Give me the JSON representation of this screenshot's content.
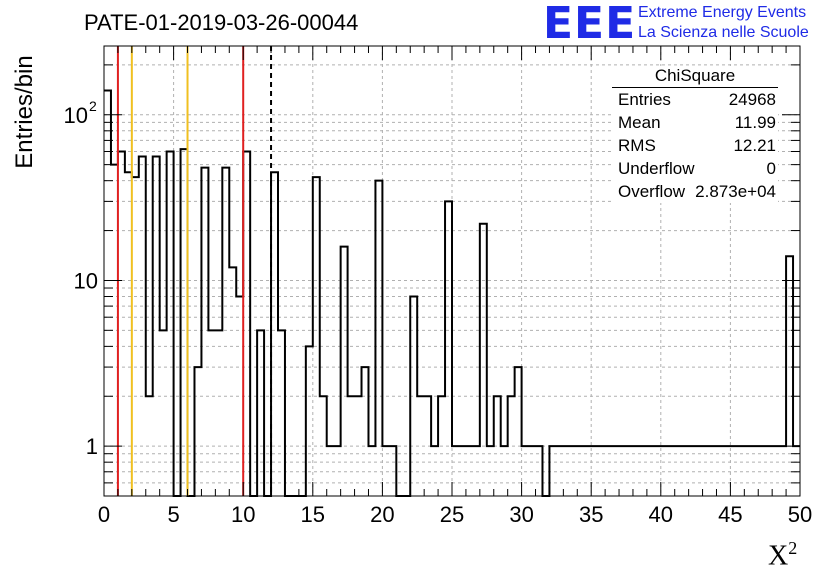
{
  "title": "PATE-01-2019-03-26-00044",
  "logo": {
    "text": "EEE",
    "line1": "Extreme Energy Events",
    "line2": "La Scienza nelle Scuole",
    "color": "#1f2be6"
  },
  "stats": {
    "title": "ChiSquare",
    "rows": [
      {
        "key": "Entries",
        "value": "24968"
      },
      {
        "key": "Mean",
        "value": "11.99"
      },
      {
        "key": "RMS",
        "value": "12.21"
      },
      {
        "key": "Underflow",
        "value": "0"
      },
      {
        "key": "Overflow",
        "value": "2.873e+04"
      }
    ]
  },
  "chart_data": {
    "type": "histogram",
    "xlabel": "X",
    "xlabel_sup": "2",
    "ylabel": "Entries/bin",
    "xlim": [
      0,
      50
    ],
    "ylim": [
      0.5,
      260
    ],
    "log_y": true,
    "grid": true,
    "bin_width": 0.5,
    "x_ticks": [
      0,
      5,
      10,
      15,
      20,
      25,
      30,
      35,
      40,
      45,
      50
    ],
    "x_tick_labels": [
      "0",
      "5",
      "10",
      "15",
      "20",
      "25",
      "30",
      "35",
      "40",
      "45",
      "50"
    ],
    "y_ticks": [
      1,
      10,
      100
    ],
    "y_tick_labels": [
      "1",
      "10",
      "10",
      "2"
    ],
    "y_tick_labels_plain": [
      "1",
      "10"
    ],
    "y_tick_label_100": {
      "base": "10",
      "exp": "2"
    },
    "bin_contents": [
      140,
      50,
      60,
      45,
      42,
      56,
      2,
      56,
      5,
      60,
      0,
      62,
      0,
      3,
      48,
      5,
      5,
      48,
      12,
      8,
      60,
      0,
      5,
      0,
      45,
      5,
      0,
      0,
      0,
      4,
      42,
      2,
      1,
      1,
      16,
      2,
      2,
      3,
      1,
      40,
      1,
      1,
      0,
      0,
      8,
      2,
      2,
      1,
      2,
      30,
      1,
      1,
      1,
      1,
      22,
      1,
      2,
      1,
      2,
      3,
      1,
      1,
      1,
      0,
      1,
      1,
      1,
      1,
      1,
      1,
      1,
      1,
      1,
      1,
      1,
      1,
      1,
      1,
      1,
      1,
      1,
      1,
      1,
      1,
      1,
      1,
      1,
      1,
      1,
      1,
      1,
      1,
      1,
      1,
      1,
      1,
      1,
      1,
      14,
      1
    ],
    "vertical_lines": [
      {
        "x": 1,
        "color": "#e02020",
        "style": "solid"
      },
      {
        "x": 2,
        "color": "#f0c020",
        "style": "solid"
      },
      {
        "x": 6,
        "color": "#f0c020",
        "style": "solid"
      },
      {
        "x": 10,
        "color": "#e02020",
        "style": "solid"
      },
      {
        "x": 12,
        "color": "#000000",
        "style": "dashed"
      }
    ]
  }
}
